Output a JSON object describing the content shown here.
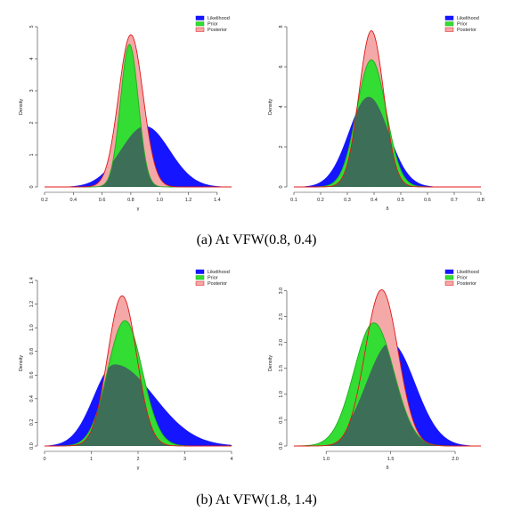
{
  "captions": [
    "(a) At VFW(0.8, 0.4)",
    "(b) At VFW(1.8, 1.4)"
  ],
  "colors": {
    "likelihood": "#1515ff",
    "prior": "#33dd33",
    "posterior": "#f4a8a8",
    "posterior_line": "#e01818",
    "prior_line": "#1fae1f",
    "overlap": "#3c6e58"
  },
  "chart_data": [
    {
      "type": "area",
      "xlabel": "γ",
      "ylabel": "Density",
      "xlim": [
        0.2,
        1.5
      ],
      "ylim": [
        0,
        5
      ],
      "xticks": [
        "0.2",
        "0.4",
        "0.6",
        "0.8",
        "1.0",
        "1.2",
        "1.4"
      ],
      "yticks": [
        "0",
        "1",
        "2",
        "3",
        "4",
        "5"
      ],
      "legend": "top-right",
      "series": [
        {
          "name": "Likelihood",
          "kind": "normal",
          "mean": 0.9,
          "peak": 1.9
        },
        {
          "name": "Prior",
          "kind": "normal",
          "mean": 0.79,
          "peak": 4.45
        },
        {
          "name": "Posterior",
          "kind": "normal",
          "mean": 0.8,
          "peak": 4.75
        }
      ]
    },
    {
      "type": "area",
      "xlabel": "δ",
      "ylabel": "Density",
      "xlim": [
        0.1,
        0.8
      ],
      "ylim": [
        0,
        8
      ],
      "xticks": [
        "0.1",
        "0.2",
        "0.3",
        "0.4",
        "0.5",
        "0.6",
        "0.7",
        "0.8"
      ],
      "yticks": [
        "0",
        "2",
        "4",
        "6",
        "8"
      ],
      "legend": "top-right",
      "series": [
        {
          "name": "Likelihood",
          "kind": "normal",
          "mean": 0.38,
          "peak": 4.5
        },
        {
          "name": "Prior",
          "kind": "normal",
          "mean": 0.39,
          "peak": 6.35
        },
        {
          "name": "Posterior",
          "kind": "normal",
          "mean": 0.39,
          "peak": 7.8
        }
      ]
    },
    {
      "type": "area",
      "xlabel": "γ",
      "ylabel": "Density",
      "xlim": [
        0,
        4
      ],
      "ylim": [
        0,
        1.4
      ],
      "xticks": [
        "0",
        "1",
        "2",
        "3",
        "4"
      ],
      "yticks": [
        "0.0",
        "0.2",
        "0.4",
        "0.6",
        "0.8",
        "1.0",
        "1.2",
        "1.4"
      ],
      "legend": "top-right",
      "series": [
        {
          "name": "Likelihood",
          "kind": "skewed",
          "mode": 1.5,
          "peak": 0.69
        },
        {
          "name": "Prior",
          "kind": "normal",
          "mean": 1.72,
          "peak": 1.06
        },
        {
          "name": "Posterior",
          "kind": "normal",
          "mean": 1.66,
          "peak": 1.27
        }
      ]
    },
    {
      "type": "area",
      "xlabel": "δ",
      "ylabel": "Density",
      "xlim": [
        0.75,
        2.2
      ],
      "ylim": [
        0,
        3.2
      ],
      "xticks": [
        "1.0",
        "1.5",
        "2.0"
      ],
      "yticks": [
        "0.0",
        "0.5",
        "1.0",
        "1.5",
        "2.0",
        "2.5",
        "3.0"
      ],
      "legend": "top-right",
      "series": [
        {
          "name": "Likelihood",
          "kind": "normal",
          "mean": 1.5,
          "peak": 2.0
        },
        {
          "name": "Prior",
          "kind": "normal",
          "mean": 1.37,
          "peak": 2.38
        },
        {
          "name": "Posterior",
          "kind": "normal",
          "mean": 1.43,
          "peak": 3.02
        }
      ]
    }
  ]
}
